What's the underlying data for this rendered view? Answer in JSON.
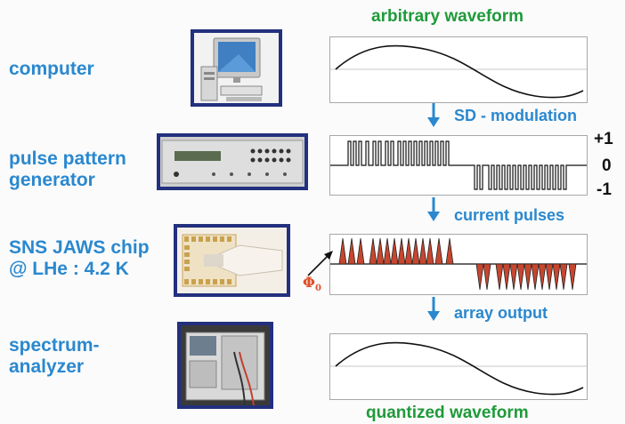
{
  "labels": {
    "computer": "computer",
    "pulse_pattern_generator": "pulse pattern\ngenerator",
    "jaws_chip": "SNS JAWS chip\n@ LHe : 4.2 K",
    "spectrum_analyzer": "spectrum-\nanalyzer"
  },
  "titles": {
    "top": "arbitrary waveform",
    "bottom": "quantized waveform"
  },
  "steps": {
    "modulation": "SD - modulation",
    "current_pulses": "current pulses",
    "array_output": "array output"
  },
  "levels": {
    "plus": "+1",
    "zero": "0",
    "minus": "-1"
  },
  "flux_symbol": "Φ",
  "flux_subscript": "0",
  "colors": {
    "label_blue": "#2a88cf",
    "title_green": "#1f9a3a",
    "frame_navy": "#23307e",
    "pulse_red": "#c8462e"
  }
}
